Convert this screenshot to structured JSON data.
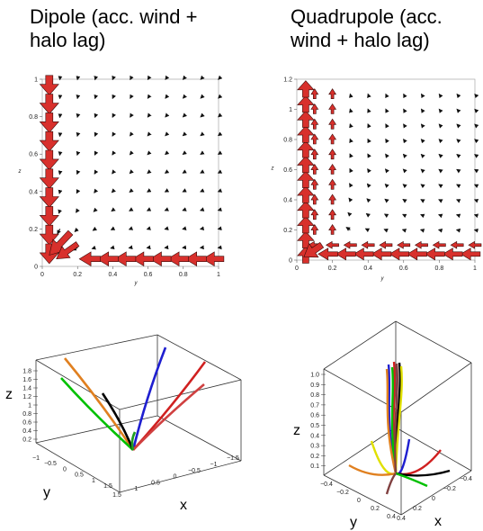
{
  "titles": {
    "left_line1": "Dipole (acc. wind +",
    "left_line2": "halo lag)",
    "right_line1": "Quadrupole (acc.",
    "right_line2": "wind + halo lag)"
  },
  "chart_data": [
    {
      "type": "quiver",
      "title": "Dipole (acc. wind + halo lag)",
      "xlabel": "y",
      "ylabel": "z",
      "xlim": [
        0,
        1
      ],
      "ylim": [
        0,
        1
      ],
      "xticks": [
        "0",
        "0.2",
        "0.4",
        "0.6",
        "0.8",
        "1"
      ],
      "yticks": [
        "0",
        "0.2",
        "0.4",
        "0.6",
        "0.8",
        "1"
      ],
      "arrow_color": "#d8302c",
      "field": "dipole"
    },
    {
      "type": "quiver",
      "title": "Quadrupole (acc. wind + halo lag)",
      "xlabel": "y",
      "ylabel": "z",
      "xlim": [
        0,
        1
      ],
      "ylim": [
        0,
        1.2
      ],
      "xticks": [
        "0",
        "0.2",
        "0.4",
        "0.6",
        "0.8",
        "1"
      ],
      "yticks": [
        "0",
        "0.2",
        "0.4",
        "0.6",
        "0.8",
        "1",
        "1.2"
      ],
      "arrow_color": "#d8302c",
      "field": "quadrupole"
    },
    {
      "type": "line3d",
      "axis_labels": {
        "x": "x",
        "y": "y",
        "z": "z"
      },
      "zticks": [
        "1.8",
        "1.6",
        "1.4",
        "1.2",
        "1",
        "0.8",
        "0.6",
        "0.4",
        "0.2"
      ],
      "xticks": [
        "1.5",
        "1",
        "0.5",
        "0",
        "−0.5",
        "−1",
        "−1.5"
      ],
      "yticks": [
        "−1",
        "−0.5",
        "0",
        "0.5",
        "1",
        "1.5"
      ],
      "line_colors": [
        "#1f1fd0",
        "#d02020",
        "#d04040",
        "#e08020",
        "#00c000",
        "#000000",
        "#20a020"
      ]
    },
    {
      "type": "line3d",
      "axis_labels": {
        "x": "x",
        "y": "y",
        "z": "z"
      },
      "zticks": [
        "1.0",
        "0.9",
        "0.8",
        "0.7",
        "0.6",
        "0.5",
        "0.4",
        "0.3",
        "0.2",
        "0.1"
      ],
      "xticks": [
        "0.4",
        "0.2",
        "0",
        "−0.2",
        "−0.4"
      ],
      "yticks": [
        "−0.4",
        "−0.2",
        "0",
        "0.2",
        "0.4"
      ],
      "line_colors": [
        "#1f1fd0",
        "#d02020",
        "#000000",
        "#00c000",
        "#e0e000",
        "#e08020",
        "#804040"
      ]
    }
  ]
}
